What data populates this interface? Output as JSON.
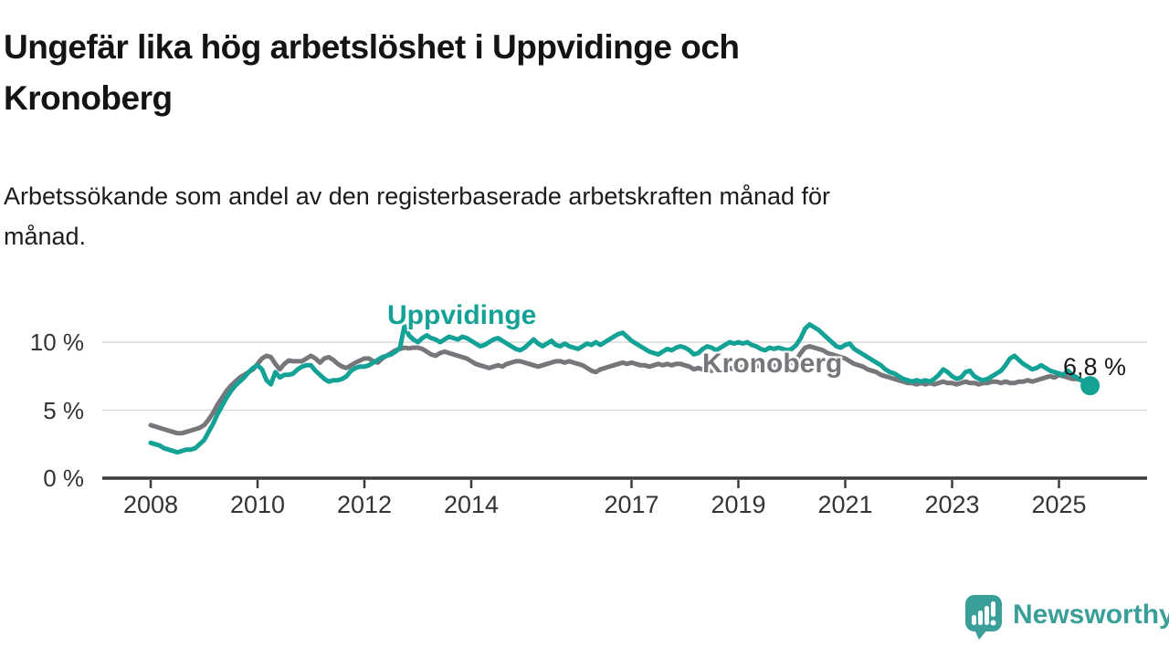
{
  "header": {
    "title": "Ungefär lika hög arbetslöshet i Uppvidinge och\nKronoberg",
    "subtitle": "Arbetssökande som andel av den registerbaserade arbetskraften månad för\nmånad."
  },
  "chart_data": {
    "type": "line",
    "title": "Ungefär lika hög arbetslöshet i Uppvidinge och Kronoberg",
    "x_unit": "month",
    "x_start": "2008-01",
    "x_end": "2025-08",
    "ylabel": "",
    "xlabel": "",
    "ylim": [
      0,
      12
    ],
    "grid": "horizontal-only",
    "gridline_values": [
      5,
      10
    ],
    "legend_position": "inline-labels",
    "yticks": [
      {
        "value": 0,
        "label": "0 %"
      },
      {
        "value": 5,
        "label": "5 %"
      },
      {
        "value": 10,
        "label": "10 %"
      }
    ],
    "xticks": [
      {
        "year": 2008,
        "label": "2008"
      },
      {
        "year": 2010,
        "label": "2010"
      },
      {
        "year": 2012,
        "label": "2012"
      },
      {
        "year": 2014,
        "label": "2014"
      },
      {
        "year": 2017,
        "label": "2017"
      },
      {
        "year": 2019,
        "label": "2019"
      },
      {
        "year": 2021,
        "label": "2021"
      },
      {
        "year": 2023,
        "label": "2023"
      },
      {
        "year": 2025,
        "label": "2025"
      }
    ],
    "series": [
      {
        "name": "Uppvidinge",
        "color": "#14a296",
        "values": [
          2.6,
          2.5,
          2.4,
          2.2,
          2.1,
          2.0,
          1.9,
          2.0,
          2.1,
          2.1,
          2.2,
          2.5,
          2.8,
          3.4,
          4.0,
          4.7,
          5.3,
          5.9,
          6.4,
          6.8,
          7.1,
          7.4,
          7.8,
          8.1,
          8.3,
          8.0,
          7.2,
          6.9,
          7.8,
          7.4,
          7.6,
          7.6,
          7.7,
          8.0,
          8.2,
          8.3,
          8.3,
          7.9,
          7.6,
          7.3,
          7.1,
          7.2,
          7.2,
          7.3,
          7.5,
          7.9,
          8.1,
          8.2,
          8.2,
          8.3,
          8.5,
          8.7,
          8.9,
          9.0,
          9.1,
          9.3,
          9.6,
          11.2,
          10.5,
          10.2,
          10.0,
          10.3,
          10.5,
          10.3,
          10.2,
          10.0,
          10.2,
          10.4,
          10.3,
          10.2,
          10.4,
          10.3,
          10.1,
          9.9,
          9.7,
          9.8,
          10.0,
          10.2,
          10.3,
          10.1,
          9.9,
          9.7,
          9.5,
          9.4,
          9.6,
          9.9,
          10.2,
          9.9,
          9.7,
          9.9,
          10.1,
          9.8,
          9.7,
          9.9,
          9.7,
          9.6,
          9.5,
          9.7,
          9.9,
          9.8,
          10.0,
          9.8,
          10.0,
          10.2,
          10.4,
          10.6,
          10.7,
          10.4,
          10.1,
          9.9,
          9.7,
          9.5,
          9.3,
          9.2,
          9.1,
          9.3,
          9.5,
          9.4,
          9.6,
          9.7,
          9.6,
          9.4,
          9.1,
          9.2,
          9.5,
          9.7,
          9.6,
          9.4,
          9.6,
          9.8,
          10.0,
          9.9,
          10.0,
          9.9,
          10.0,
          9.8,
          9.7,
          9.5,
          9.4,
          9.6,
          9.5,
          9.6,
          9.5,
          9.4,
          9.5,
          9.8,
          10.3,
          11.0,
          11.3,
          11.1,
          10.9,
          10.6,
          10.3,
          10.0,
          9.7,
          9.6,
          9.8,
          9.9,
          9.5,
          9.3,
          9.1,
          8.9,
          8.7,
          8.5,
          8.3,
          8.0,
          7.8,
          7.7,
          7.5,
          7.3,
          7.2,
          7.1,
          7.2,
          7.1,
          7.2,
          7.1,
          7.3,
          7.6,
          8.0,
          7.8,
          7.5,
          7.3,
          7.4,
          7.8,
          7.9,
          7.5,
          7.3,
          7.2,
          7.3,
          7.5,
          7.7,
          7.9,
          8.3,
          8.8,
          9.0,
          8.7,
          8.4,
          8.2,
          8.0,
          8.1,
          8.3,
          8.1,
          7.9,
          7.8,
          7.7,
          7.6,
          7.9,
          7.6,
          7.4,
          7.2,
          7.0,
          6.8
        ]
      },
      {
        "name": "Kronoberg",
        "color": "#77767b",
        "values": [
          3.9,
          3.8,
          3.7,
          3.6,
          3.5,
          3.4,
          3.3,
          3.3,
          3.4,
          3.5,
          3.6,
          3.7,
          3.9,
          4.3,
          4.8,
          5.4,
          5.9,
          6.4,
          6.8,
          7.1,
          7.4,
          7.6,
          7.8,
          8.0,
          8.4,
          8.8,
          9.0,
          8.9,
          8.4,
          8.0,
          8.4,
          8.65,
          8.6,
          8.6,
          8.6,
          8.8,
          9.0,
          8.8,
          8.5,
          8.8,
          8.9,
          8.7,
          8.4,
          8.2,
          8.1,
          8.3,
          8.5,
          8.65,
          8.8,
          8.8,
          8.6,
          8.5,
          8.8,
          9.0,
          9.2,
          9.4,
          9.5,
          9.6,
          9.55,
          9.6,
          9.6,
          9.5,
          9.3,
          9.1,
          9.0,
          9.2,
          9.3,
          9.2,
          9.1,
          9.0,
          8.9,
          8.8,
          8.6,
          8.4,
          8.3,
          8.2,
          8.1,
          8.2,
          8.3,
          8.2,
          8.4,
          8.5,
          8.6,
          8.6,
          8.5,
          8.4,
          8.3,
          8.2,
          8.3,
          8.4,
          8.5,
          8.6,
          8.6,
          8.5,
          8.6,
          8.5,
          8.4,
          8.3,
          8.1,
          7.9,
          7.8,
          8.0,
          8.1,
          8.2,
          8.3,
          8.4,
          8.5,
          8.4,
          8.5,
          8.4,
          8.3,
          8.3,
          8.2,
          8.3,
          8.4,
          8.3,
          8.4,
          8.3,
          8.4,
          8.4,
          8.3,
          8.2,
          8.0,
          8.1,
          8.0,
          7.9,
          7.9,
          8.0,
          7.9,
          8.0,
          8.1,
          8.0,
          8.1,
          8.2,
          8.1,
          8.2,
          8.3,
          8.2,
          8.3,
          8.4,
          8.3,
          8.4,
          8.3,
          8.4,
          8.5,
          8.7,
          9.2,
          9.6,
          9.7,
          9.6,
          9.5,
          9.4,
          9.2,
          9.1,
          9.0,
          8.9,
          8.8,
          8.6,
          8.4,
          8.3,
          8.2,
          8.0,
          7.9,
          7.8,
          7.6,
          7.5,
          7.4,
          7.3,
          7.2,
          7.1,
          7.0,
          7.0,
          6.9,
          7.0,
          6.9,
          7.0,
          6.9,
          7.0,
          7.1,
          7.0,
          7.0,
          6.9,
          7.0,
          7.1,
          7.0,
          7.0,
          6.9,
          7.0,
          7.0,
          7.1,
          7.1,
          7.0,
          7.1,
          7.0,
          7.0,
          7.1,
          7.1,
          7.2,
          7.1,
          7.2,
          7.3,
          7.4,
          7.5,
          7.4,
          7.6,
          7.5,
          7.4,
          7.3,
          7.3,
          7.2,
          7.1,
          7.0
        ]
      }
    ],
    "end_annotation": {
      "label": "6,8 %",
      "series": "Uppvidinge",
      "value": 6.8
    },
    "axis_color": "#3a3a3a",
    "gridline_color": "#dadada"
  },
  "footer": {
    "brand": "Newsworthy",
    "brand_color": "#3b9f99"
  }
}
